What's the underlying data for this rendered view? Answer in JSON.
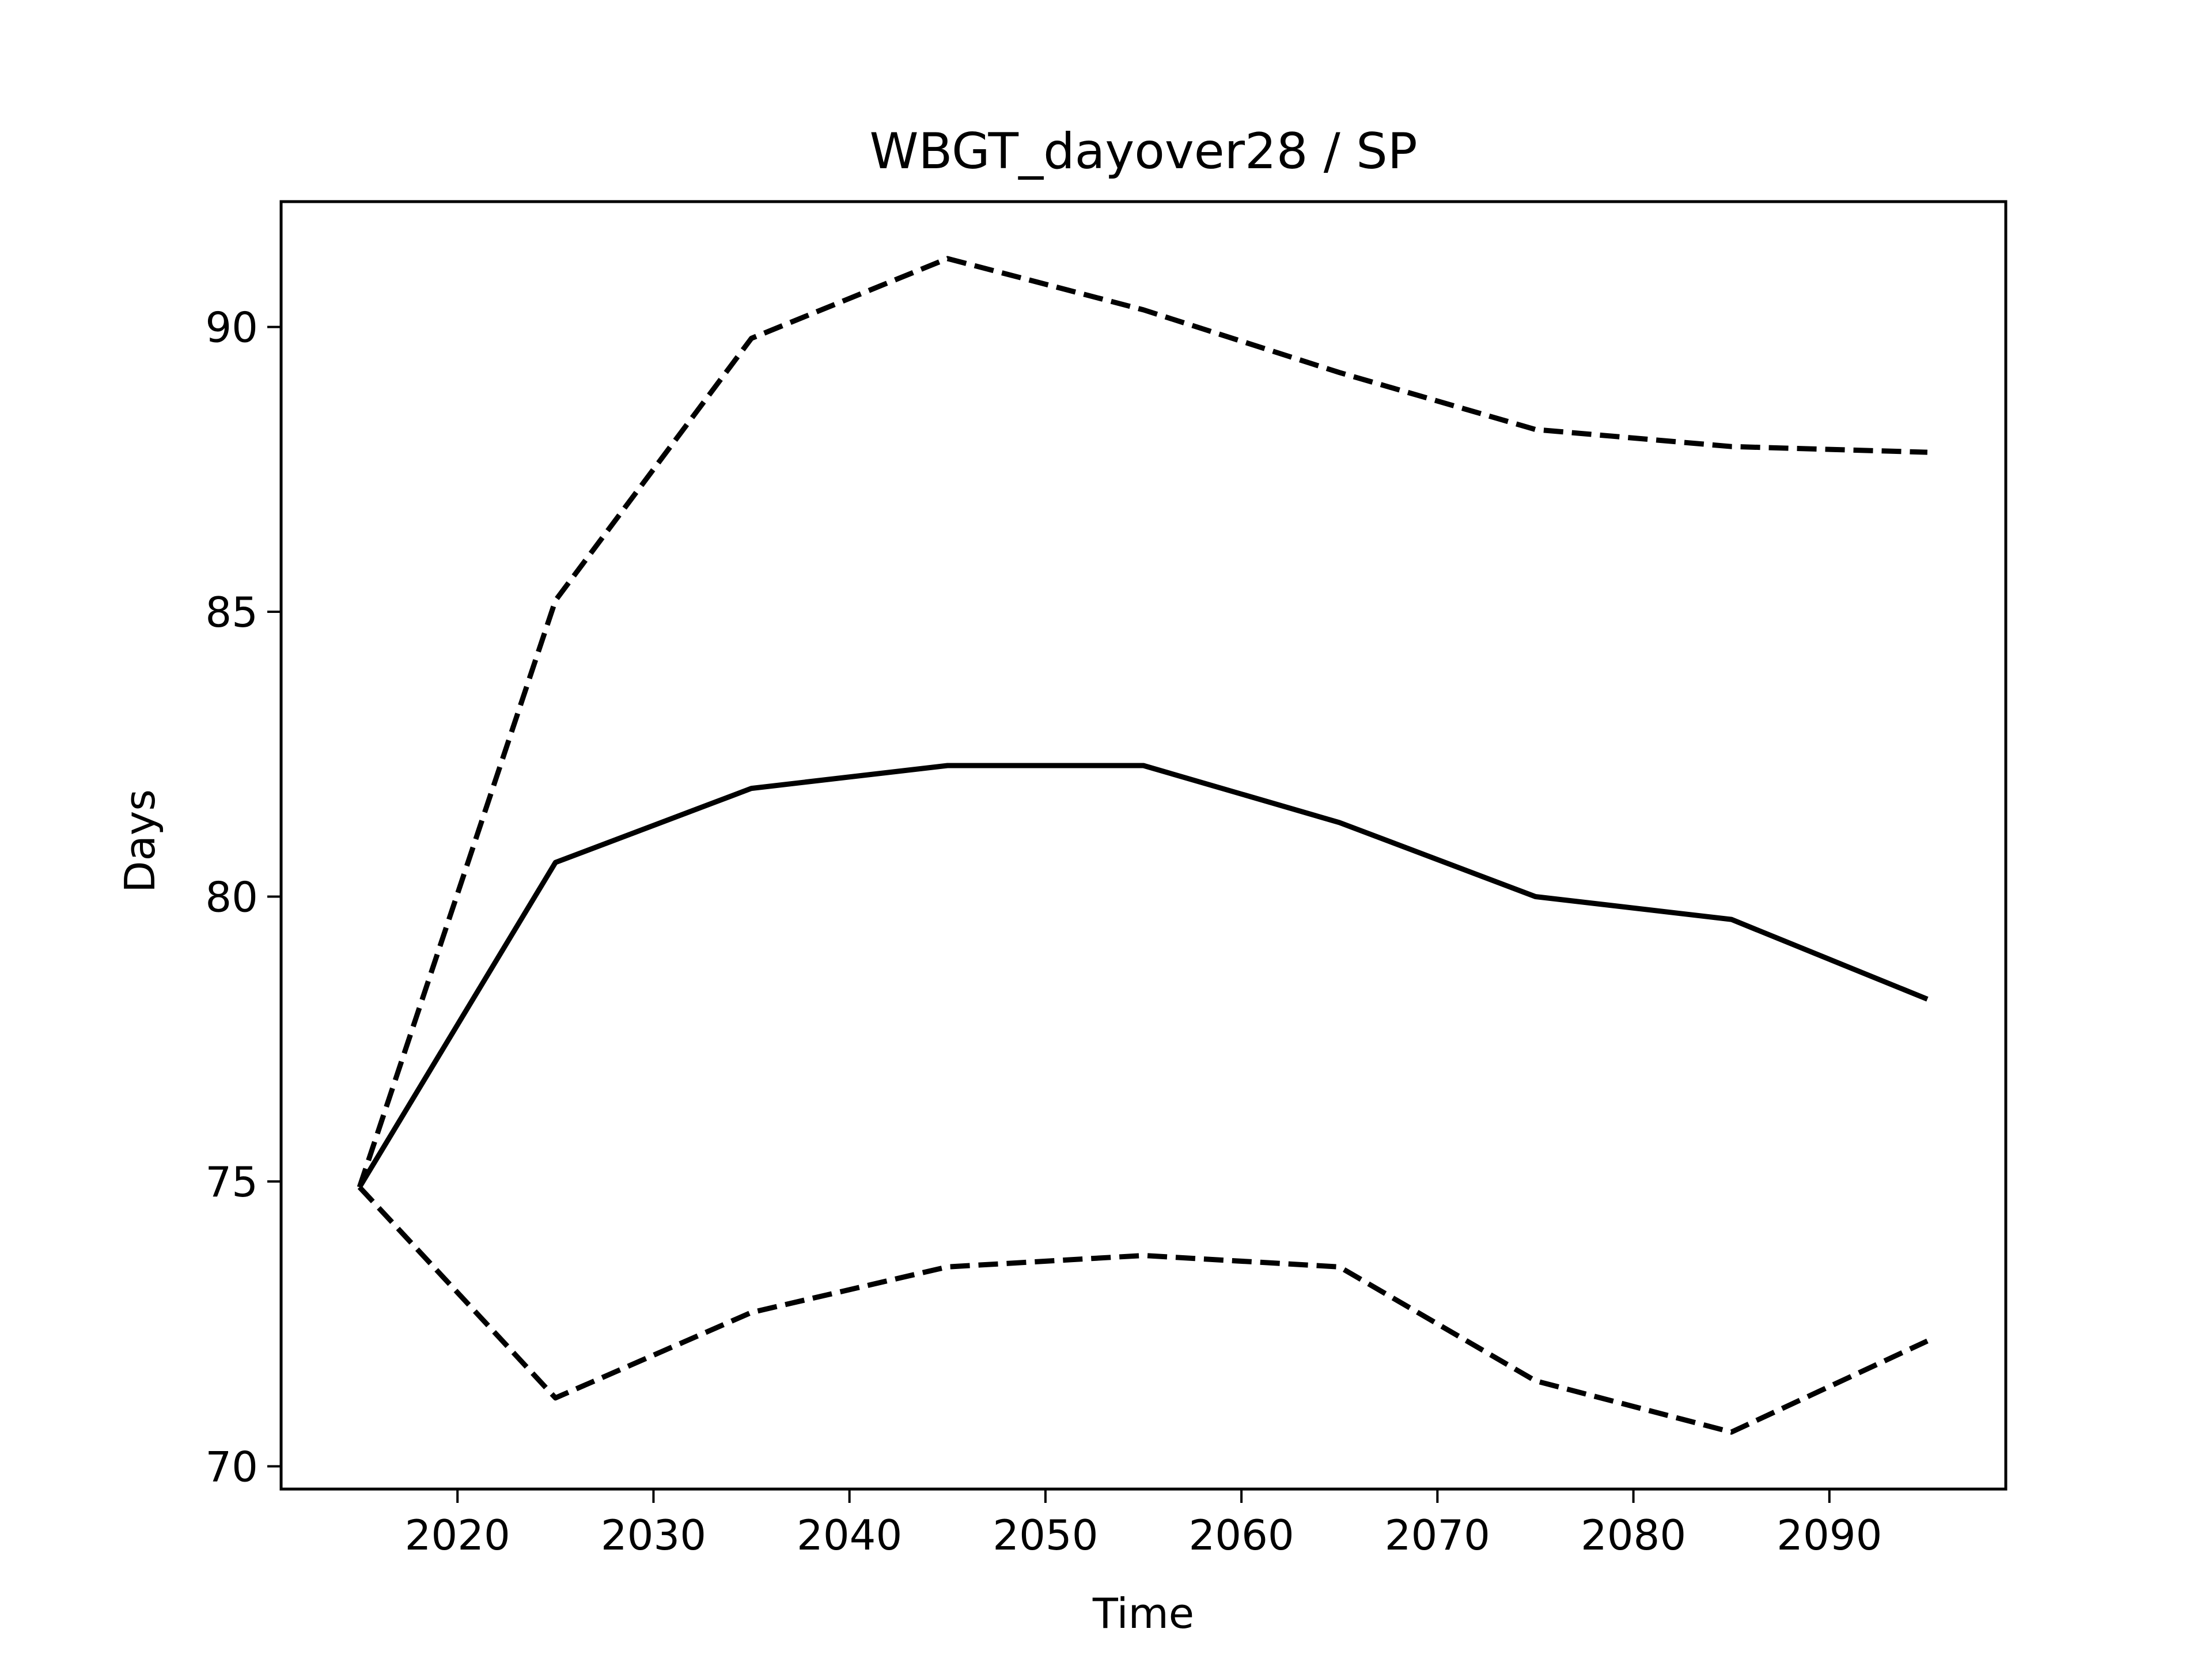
{
  "chart_data": {
    "type": "line",
    "title": "WBGT_dayover28 / SP",
    "xlabel": "Time",
    "ylabel": "Days",
    "xlim": [
      2011,
      2099
    ],
    "ylim": [
      69.6,
      92.2
    ],
    "xticks": [
      2020,
      2030,
      2040,
      2050,
      2060,
      2070,
      2080,
      2090
    ],
    "yticks": [
      70,
      75,
      80,
      85,
      90
    ],
    "xtick_labels": [
      "2020",
      "2030",
      "2040",
      "2050",
      "2060",
      "2070",
      "2080",
      "2090"
    ],
    "ytick_labels": [
      "70",
      "75",
      "80",
      "85",
      "90"
    ],
    "grid": false,
    "x": [
      2015,
      2025,
      2035,
      2045,
      2055,
      2065,
      2075,
      2085,
      2095
    ],
    "series": [
      {
        "style": "solid",
        "color": "#000000",
        "values": [
          74.9,
          80.6,
          81.9,
          82.3,
          82.3,
          81.3,
          80.0,
          79.6,
          78.2
        ]
      },
      {
        "style": "dashed",
        "color": "#000000",
        "values": [
          74.9,
          85.2,
          89.8,
          91.2,
          90.3,
          89.2,
          88.2,
          87.9,
          87.8
        ]
      },
      {
        "style": "dashed",
        "color": "#000000",
        "values": [
          74.9,
          71.2,
          72.7,
          73.5,
          73.7,
          73.5,
          71.5,
          70.6,
          72.2
        ]
      }
    ]
  }
}
